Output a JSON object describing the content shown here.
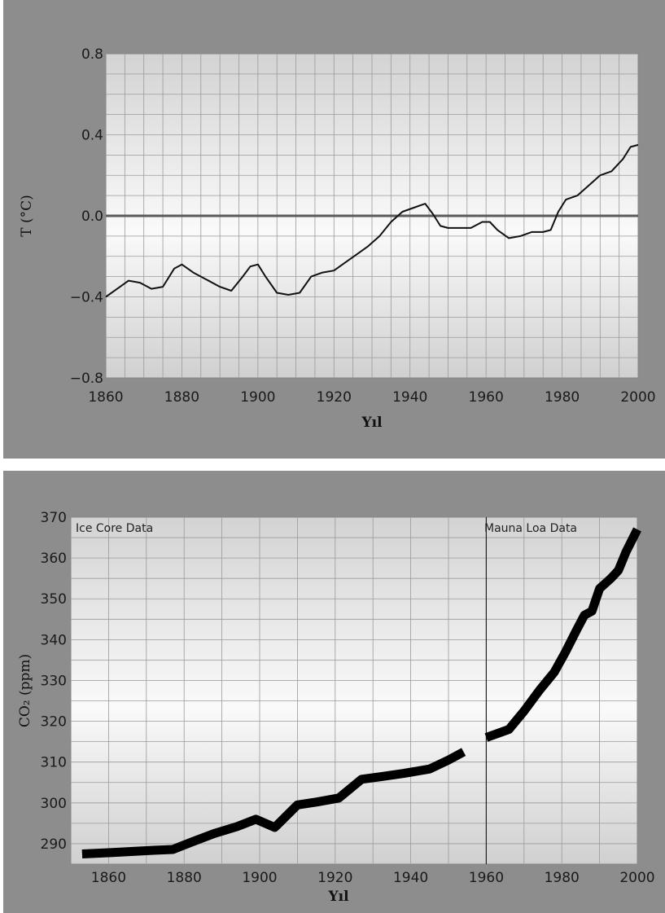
{
  "chart_data": [
    {
      "type": "line",
      "xlabel": "Yıl",
      "ylabel": "T (°C)",
      "xlim": [
        1860,
        2000
      ],
      "ylim": [
        -0.8,
        0.8
      ],
      "x_ticks": [
        "1860",
        "1880",
        "1900",
        "1920",
        "1940",
        "1960",
        "1980",
        "2000"
      ],
      "y_ticks": [
        "0.8",
        "0.4",
        "0.0",
        "−0.4",
        "−0.8"
      ],
      "reference_line_y": 0.0,
      "grid": true,
      "line_color": "#111111",
      "series": [
        {
          "x": [
            1860,
            1863,
            1866,
            1869,
            1872,
            1875,
            1878,
            1880,
            1883,
            1886,
            1890,
            1893,
            1896,
            1898,
            1900,
            1902,
            1905,
            1908,
            1911,
            1914,
            1917,
            1920,
            1923,
            1926,
            1929,
            1932,
            1935,
            1938,
            1941,
            1944,
            1946,
            1948,
            1950,
            1953,
            1956,
            1959,
            1961,
            1963,
            1966,
            1969,
            1972,
            1975,
            1977,
            1979,
            1981,
            1984,
            1987,
            1990,
            1993,
            1996,
            1998,
            2000
          ],
          "y": [
            -0.4,
            -0.36,
            -0.32,
            -0.33,
            -0.36,
            -0.35,
            -0.26,
            -0.24,
            -0.28,
            -0.31,
            -0.35,
            -0.37,
            -0.3,
            -0.25,
            -0.24,
            -0.3,
            -0.38,
            -0.39,
            -0.38,
            -0.3,
            -0.28,
            -0.27,
            -0.23,
            -0.19,
            -0.15,
            -0.1,
            -0.03,
            0.02,
            0.04,
            0.06,
            0.01,
            -0.05,
            -0.06,
            -0.06,
            -0.06,
            -0.03,
            -0.03,
            -0.07,
            -0.11,
            -0.1,
            -0.08,
            -0.08,
            -0.07,
            0.02,
            0.08,
            0.1,
            0.15,
            0.2,
            0.22,
            0.28,
            0.34,
            0.35
          ]
        }
      ]
    },
    {
      "type": "line",
      "xlabel": "Yıl",
      "ylabel": "CO₂ (ppm)",
      "xlim": [
        1850,
        2000
      ],
      "ylim": [
        285,
        370
      ],
      "x_ticks": [
        "1860",
        "1880",
        "1900",
        "1920",
        "1940",
        "1960",
        "1980",
        "2000"
      ],
      "y_ticks": [
        "370",
        "360",
        "350",
        "340",
        "330",
        "320",
        "310",
        "300",
        "290"
      ],
      "grid": true,
      "divider_x": 1960,
      "annotations": [
        "Ice Core Data",
        "Mauna Loa Data"
      ],
      "line_color": "#000000",
      "series": [
        {
          "x": [
            1853,
            1860,
            1866,
            1872,
            1877,
            1882,
            1888,
            1894,
            1899,
            1904,
            1910,
            1915,
            1921,
            1927,
            1932,
            1938,
            1945,
            1950,
            1954
          ],
          "y": [
            287.5,
            287.8,
            288.1,
            288.4,
            288.6,
            290.4,
            292.5,
            294.2,
            296,
            294,
            299.5,
            300.2,
            301.2,
            305.8,
            306.4,
            307.2,
            308.3,
            310.5,
            312.5
          ]
        },
        {
          "x": [
            1960,
            1966,
            1970,
            1974,
            1978,
            1981,
            1984,
            1986,
            1988,
            1990,
            1993,
            1995,
            1997,
            2000
          ],
          "y": [
            316,
            318,
            322.5,
            327.5,
            332,
            337,
            342.5,
            346,
            347,
            352.5,
            355,
            357,
            361.5,
            367
          ]
        }
      ]
    }
  ]
}
